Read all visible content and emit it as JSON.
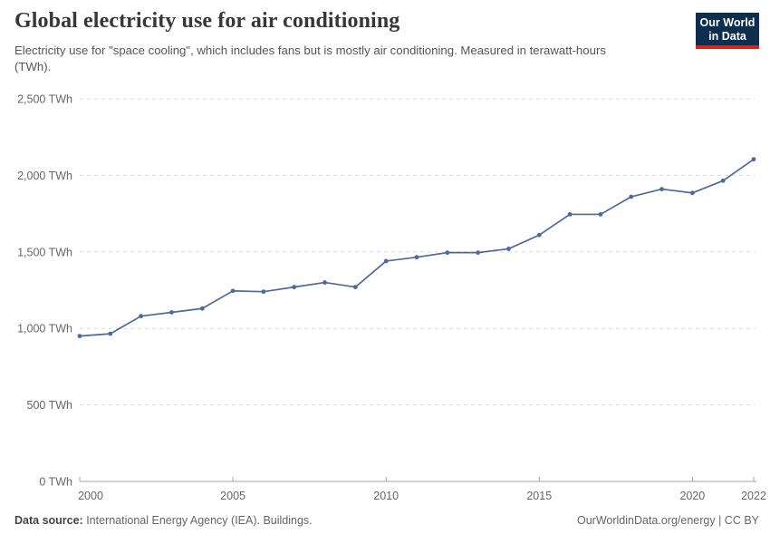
{
  "header": {
    "title": "Global electricity use for air conditioning",
    "subtitle": "Electricity use for \"space cooling\", which includes fans but is mostly air conditioning. Measured in terawatt-hours (TWh).",
    "logo": {
      "line1": "Our World",
      "line2": "in Data",
      "bg_color": "#0d2e4e",
      "accent_color": "#cc2a1e"
    }
  },
  "chart_data": {
    "type": "line",
    "title": "Global electricity use for air conditioning",
    "unit": "TWh",
    "x": [
      2000,
      2001,
      2002,
      2003,
      2004,
      2005,
      2006,
      2007,
      2008,
      2009,
      2010,
      2011,
      2012,
      2013,
      2014,
      2015,
      2016,
      2017,
      2018,
      2019,
      2020,
      2021,
      2022
    ],
    "series": [
      {
        "name": "World",
        "values": [
          950,
          965,
          1080,
          1105,
          1130,
          1245,
          1240,
          1270,
          1300,
          1270,
          1440,
          1465,
          1495,
          1495,
          1520,
          1610,
          1745,
          1745,
          1860,
          1910,
          1885,
          1965,
          2105
        ]
      }
    ],
    "xlabel": "",
    "ylabel": "",
    "ylim": [
      0,
      2500
    ],
    "yticks": [
      0,
      500,
      1000,
      1500,
      2000,
      2500
    ],
    "ytick_labels": [
      "0 TWh",
      "500 TWh",
      "1,000 TWh",
      "1,500 TWh",
      "2,000 TWh",
      "2,500 TWh"
    ],
    "xticks": [
      2000,
      2005,
      2010,
      2015,
      2020,
      2022
    ],
    "xtick_labels": [
      "2000",
      "2005",
      "2010",
      "2015",
      "2020",
      "2022"
    ],
    "grid": "dashed-horizontal",
    "legend": "none",
    "line_color": "#4c6a9c",
    "marker": "circle",
    "gridline_color": "#dddddd",
    "axis_color": "#a5a5a5",
    "tick_label_color": "#666666"
  },
  "footer": {
    "source_label": "Data source:",
    "source_text": " International Energy Agency (IEA). Buildings.",
    "credit": "OurWorldinData.org/energy | CC BY"
  }
}
